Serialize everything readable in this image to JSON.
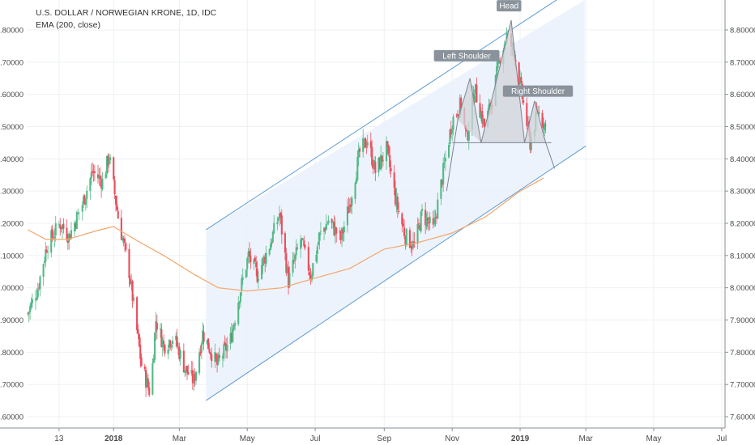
{
  "chart_data": {
    "type": "candlestick",
    "title": "U.S. DOLLAR / NORWEGIAN KRONE, 1D, IDC",
    "subtitle": "EMA (200, close)",
    "y_ticks": [
      "8.80000",
      "8.70000",
      "8.60000",
      "8.50000",
      "8.40000",
      "8.30000",
      "8.20000",
      "8.10000",
      "8.00000",
      "7.90000",
      "7.80000",
      "7.70000",
      "7.60000"
    ],
    "y_tick_values": [
      8.8,
      8.7,
      8.6,
      8.5,
      8.4,
      8.3,
      8.2,
      8.1,
      8.0,
      7.9,
      7.8,
      7.7,
      7.6
    ],
    "ylim": [
      7.575,
      8.875
    ],
    "x_ticks": [
      "13",
      "2018",
      "Mar",
      "May",
      "Jul",
      "Sep",
      "Nov",
      "2019",
      "Mar",
      "May",
      "Jul"
    ],
    "x_tick_bold": [
      false,
      true,
      false,
      false,
      false,
      false,
      false,
      true,
      false,
      false,
      false
    ],
    "x_tick_dates": [
      "2017-11-13",
      "2018-01-01",
      "2018-03-01",
      "2018-05-01",
      "2018-07-01",
      "2018-09-01",
      "2018-11-01",
      "2019-01-01",
      "2019-03-01",
      "2019-05-01",
      "2019-07-01"
    ],
    "xlim": [
      "2017-10-15",
      "2019-07-04"
    ],
    "grid": true,
    "colors": {
      "up": "#53b987",
      "down": "#eb4d5c",
      "ema": "#f3a56a",
      "channel_line": "#5b9bd5",
      "channel_fill": "#eaf1fc",
      "pattern_fill": "#d0d4da",
      "pattern_line": "#7d8590",
      "label_bg": "#8a929b"
    },
    "price_waypoints": [
      [
        "2017-10-16",
        7.92
      ],
      [
        "2017-10-25",
        8.0
      ],
      [
        "2017-11-02",
        8.13
      ],
      [
        "2017-11-14",
        8.2
      ],
      [
        "2017-11-22",
        8.16
      ],
      [
        "2017-12-04",
        8.26
      ],
      [
        "2017-12-13",
        8.36
      ],
      [
        "2017-12-22",
        8.33
      ],
      [
        "2017-12-28",
        8.41
      ],
      [
        "2018-01-05",
        8.22
      ],
      [
        "2018-01-15",
        8.05
      ],
      [
        "2018-01-26",
        7.76
      ],
      [
        "2018-02-03",
        7.67
      ],
      [
        "2018-02-08",
        7.9
      ],
      [
        "2018-02-15",
        7.82
      ],
      [
        "2018-02-24",
        7.85
      ],
      [
        "2018-03-06",
        7.75
      ],
      [
        "2018-03-14",
        7.71
      ],
      [
        "2018-03-22",
        7.86
      ],
      [
        "2018-04-04",
        7.76
      ],
      [
        "2018-04-16",
        7.84
      ],
      [
        "2018-04-24",
        7.98
      ],
      [
        "2018-05-02",
        8.1
      ],
      [
        "2018-05-10",
        8.04
      ],
      [
        "2018-05-20",
        8.12
      ],
      [
        "2018-05-30",
        8.23
      ],
      [
        "2018-06-07",
        8.02
      ],
      [
        "2018-06-18",
        8.15
      ],
      [
        "2018-06-27",
        8.04
      ],
      [
        "2018-07-05",
        8.16
      ],
      [
        "2018-07-13",
        8.21
      ],
      [
        "2018-07-24",
        8.15
      ],
      [
        "2018-08-01",
        8.26
      ],
      [
        "2018-08-10",
        8.42
      ],
      [
        "2018-08-17",
        8.46
      ],
      [
        "2018-08-24",
        8.36
      ],
      [
        "2018-09-03",
        8.43
      ],
      [
        "2018-09-12",
        8.26
      ],
      [
        "2018-09-20",
        8.16
      ],
      [
        "2018-09-28",
        8.13
      ],
      [
        "2018-10-05",
        8.23
      ],
      [
        "2018-10-15",
        8.18
      ],
      [
        "2018-10-24",
        8.36
      ],
      [
        "2018-11-01",
        8.52
      ],
      [
        "2018-11-09",
        8.57
      ],
      [
        "2018-11-14",
        8.46
      ],
      [
        "2018-11-21",
        8.62
      ],
      [
        "2018-11-30",
        8.5
      ],
      [
        "2018-12-08",
        8.6
      ],
      [
        "2018-12-14",
        8.72
      ],
      [
        "2018-12-20",
        8.78
      ],
      [
        "2018-12-27",
        8.73
      ],
      [
        "2019-01-04",
        8.57
      ],
      [
        "2019-01-10",
        8.45
      ],
      [
        "2019-01-17",
        8.55
      ],
      [
        "2019-01-24",
        8.5
      ]
    ],
    "ema_waypoints": [
      [
        "2017-10-16",
        8.18
      ],
      [
        "2017-11-01",
        8.15
      ],
      [
        "2017-11-20",
        8.15
      ],
      [
        "2017-12-20",
        8.18
      ],
      [
        "2018-01-01",
        8.19
      ],
      [
        "2018-01-20",
        8.15
      ],
      [
        "2018-02-15",
        8.1
      ],
      [
        "2018-03-15",
        8.04
      ],
      [
        "2018-04-05",
        8.0
      ],
      [
        "2018-05-01",
        7.99
      ],
      [
        "2018-06-01",
        8.0
      ],
      [
        "2018-07-01",
        8.03
      ],
      [
        "2018-08-01",
        8.06
      ],
      [
        "2018-09-01",
        8.12
      ],
      [
        "2018-10-01",
        8.14
      ],
      [
        "2018-11-01",
        8.17
      ],
      [
        "2018-12-01",
        8.22
      ],
      [
        "2019-01-01",
        8.3
      ],
      [
        "2019-01-22",
        8.34
      ]
    ],
    "channel": {
      "upper": [
        [
          "2018-03-25",
          8.18
        ],
        [
          "2019-01-28",
          8.88
        ]
      ],
      "lower": [
        [
          "2018-03-25",
          7.65
        ],
        [
          "2019-03-01",
          8.44
        ]
      ],
      "box_end": "2019-02-28"
    },
    "pattern": {
      "peaks": [
        [
          "2018-10-27",
          8.3
        ],
        [
          "2018-11-06",
          8.52
        ],
        [
          "2018-11-17",
          8.65
        ],
        [
          "2018-11-27",
          8.45
        ],
        [
          "2018-12-24",
          8.83
        ],
        [
          "2019-01-05",
          8.45
        ],
        [
          "2019-01-14",
          8.58
        ],
        [
          "2019-01-24",
          8.45
        ],
        [
          "2019-02-01",
          8.37
        ]
      ],
      "neckline": [
        [
          "2018-11-01",
          8.45
        ],
        [
          "2019-01-29",
          8.45
        ]
      ]
    },
    "annotations": [
      {
        "text": "Head",
        "date": "2018-12-22",
        "price": 8.875
      },
      {
        "text": "Left Shoulder",
        "date": "2018-11-14",
        "price": 8.72
      },
      {
        "text": "Right Shoulder",
        "date": "2019-01-17",
        "price": 8.61
      }
    ]
  }
}
